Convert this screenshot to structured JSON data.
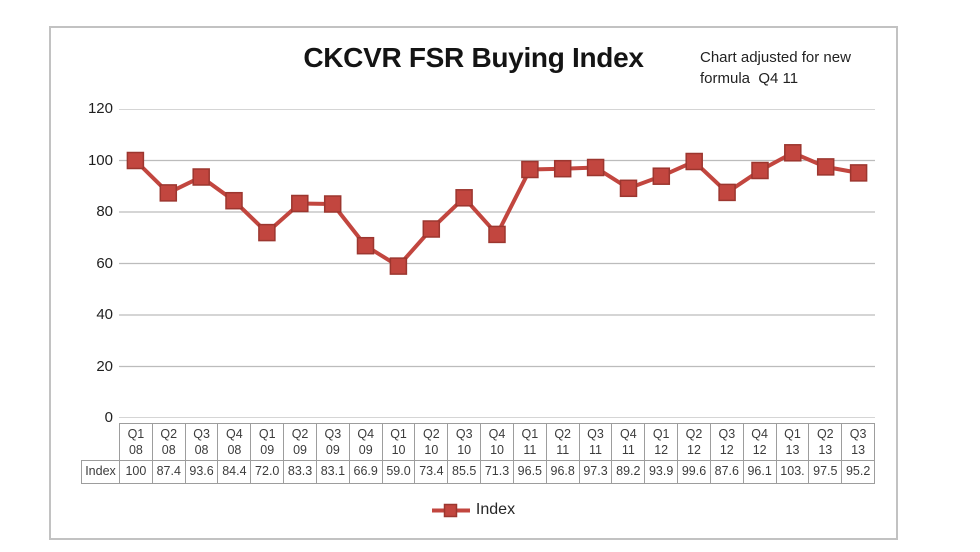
{
  "chart": {
    "title": "CKCVR FSR Buying Index",
    "annotation": "Chart adjusted for new\nformula  Q4 11",
    "legend_label": "Index",
    "colors": {
      "series": "#c2463f",
      "series_border": "#9c362f",
      "gridline": "#bcbcbc"
    }
  },
  "table": {
    "row_label": "Index"
  },
  "chart_data": {
    "type": "line",
    "title": "CKCVR FSR Buying Index",
    "annotation": "Chart adjusted for new formula Q4 11",
    "categories": [
      "Q1 08",
      "Q2 08",
      "Q3 08",
      "Q4 08",
      "Q1 09",
      "Q2 09",
      "Q3 09",
      "Q4 09",
      "Q1 10",
      "Q2 10",
      "Q3 10",
      "Q4 10",
      "Q1 11",
      "Q2 11",
      "Q3 11",
      "Q4 11",
      "Q1 12",
      "Q2 12",
      "Q3 12",
      "Q4 12",
      "Q1 13",
      "Q2 13",
      "Q3 13"
    ],
    "series": [
      {
        "name": "Index",
        "color": "#c2463f",
        "marker": "square",
        "values": [
          100,
          87.4,
          93.6,
          84.4,
          72.0,
          83.3,
          83.1,
          66.9,
          59.0,
          73.4,
          85.5,
          71.3,
          96.5,
          96.8,
          97.3,
          89.2,
          93.9,
          99.6,
          87.6,
          96.1,
          103.0,
          97.5,
          95.2
        ],
        "labels": [
          "100",
          "87.4",
          "93.6",
          "84.4",
          "72.0",
          "83.3",
          "83.1",
          "66.9",
          "59.0",
          "73.4",
          "85.5",
          "71.3",
          "96.5",
          "96.8",
          "97.3",
          "89.2",
          "93.9",
          "99.6",
          "87.6",
          "96.1",
          "103.",
          "97.5",
          "95.2"
        ]
      }
    ],
    "xlabel": "",
    "ylabel": "",
    "ylim": [
      0,
      120
    ],
    "yticks": [
      0,
      20,
      40,
      60,
      80,
      100,
      120
    ],
    "grid": "horizontal",
    "legend_position": "bottom",
    "data_table_shown": true
  }
}
